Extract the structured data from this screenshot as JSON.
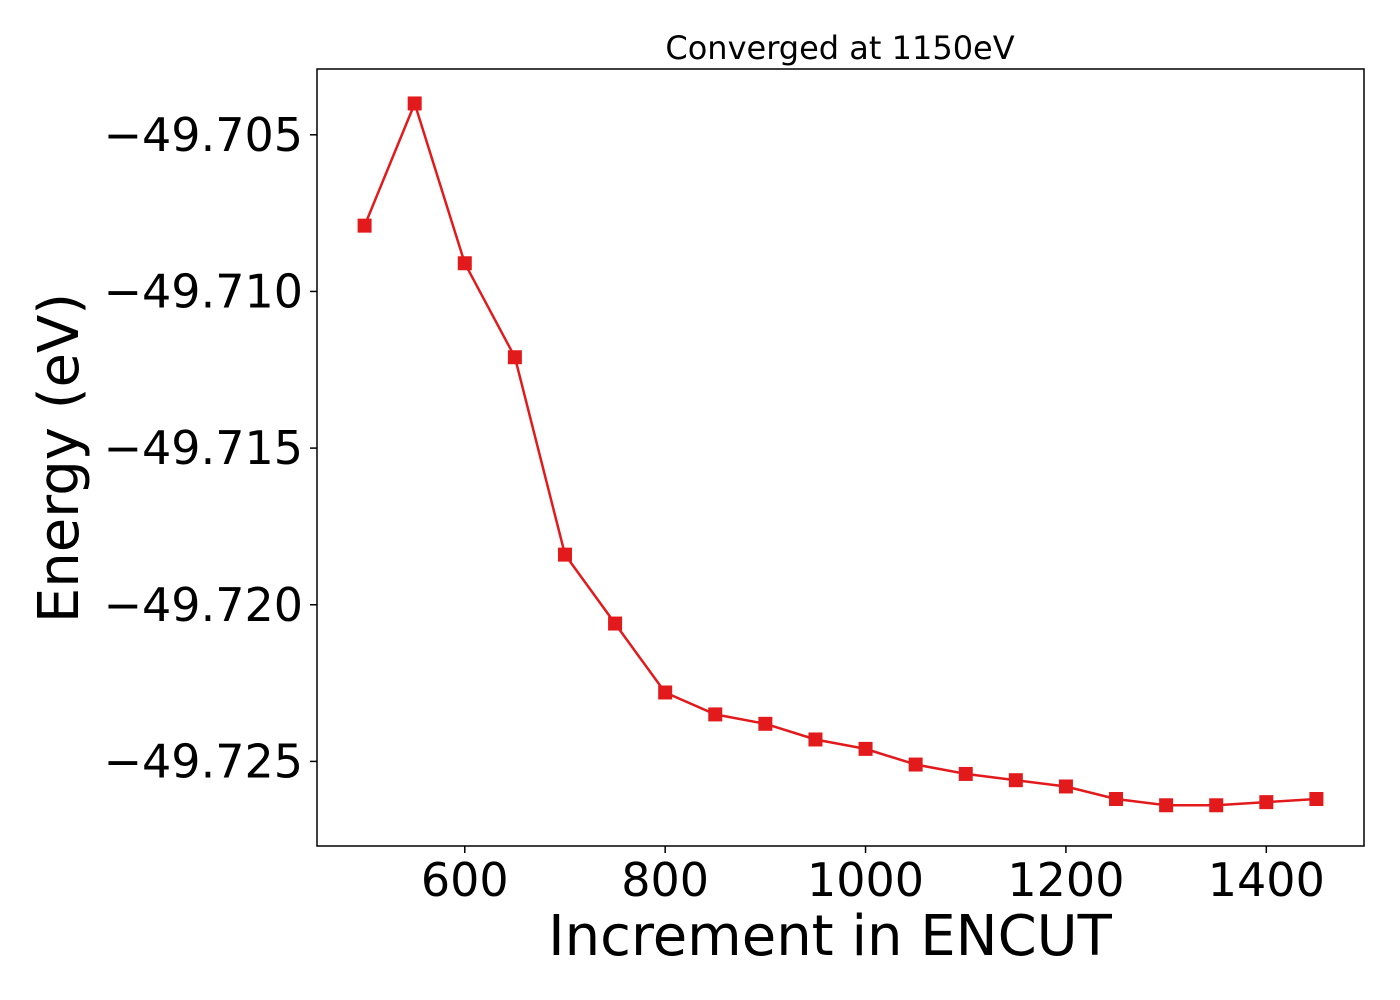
{
  "chart_data": {
    "type": "line",
    "title": "Converged at 1150eV",
    "xlabel": "Increment in ENCUT",
    "ylabel": "Energy (eV)",
    "xlim": [
      452.5,
      1497.5
    ],
    "ylim": [
      -49.7277,
      -49.7029
    ],
    "xticks": [
      600,
      800,
      1000,
      1200,
      1400
    ],
    "xtick_labels": [
      "600",
      "800",
      "1000",
      "1200",
      "1400"
    ],
    "yticks": [
      -49.705,
      -49.71,
      -49.715,
      -49.72,
      -49.725
    ],
    "ytick_labels": [
      "−49.705",
      "−49.710",
      "−49.715",
      "−49.720",
      "−49.725"
    ],
    "grid": false,
    "legend": false,
    "series": [
      {
        "color": "#e31a1c",
        "marker": "square",
        "x": [
          500,
          550,
          600,
          650,
          700,
          750,
          800,
          850,
          900,
          950,
          1000,
          1050,
          1100,
          1150,
          1200,
          1250,
          1300,
          1350,
          1400,
          1450
        ],
        "y": [
          -49.7079,
          -49.704,
          -49.7091,
          -49.7121,
          -49.7184,
          -49.7206,
          -49.7228,
          -49.7235,
          -49.7238,
          -49.7243,
          -49.7246,
          -49.7251,
          -49.7254,
          -49.7256,
          -49.7258,
          -49.7262,
          -49.7264,
          -49.7264,
          -49.7263,
          -49.7262
        ]
      }
    ]
  }
}
